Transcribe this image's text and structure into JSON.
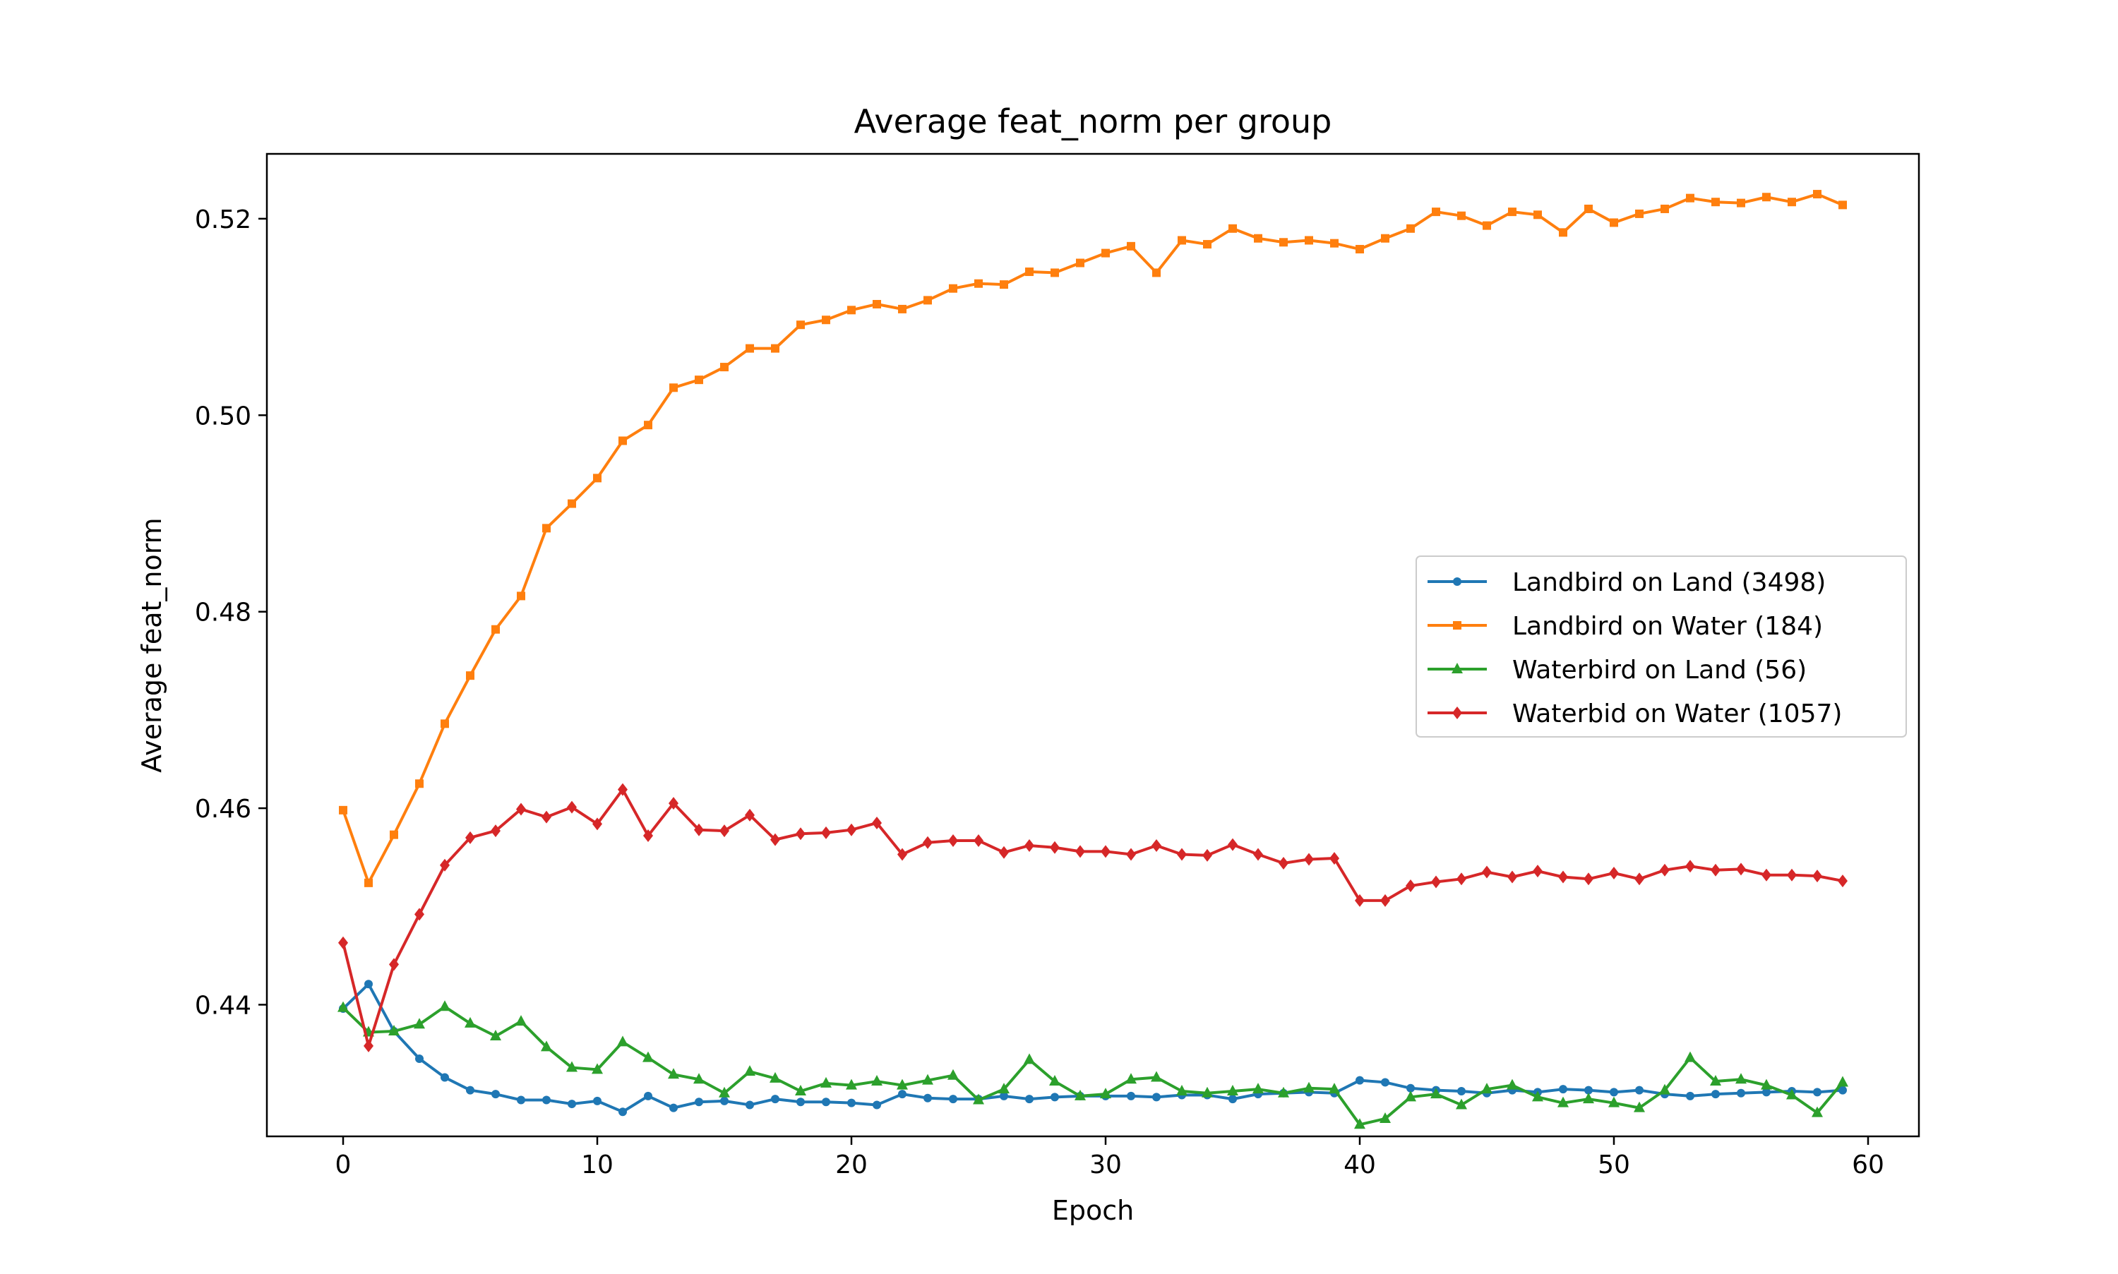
{
  "chart_data": {
    "type": "line",
    "title": "Average feat_norm per group",
    "xlabel": "Epoch",
    "ylabel": "Average feat_norm",
    "xlim": [
      -3,
      62
    ],
    "ylim": [
      0.4266,
      0.5266
    ],
    "xticks": [
      0,
      10,
      20,
      30,
      40,
      50,
      60
    ],
    "xtick_labels": [
      "0",
      "10",
      "20",
      "30",
      "40",
      "50",
      "60"
    ],
    "yticks": [
      0.44,
      0.46,
      0.48,
      0.5,
      0.52
    ],
    "ytick_labels": [
      "0.44",
      "0.46",
      "0.48",
      "0.50",
      "0.52"
    ],
    "grid": false,
    "legend_position": "center-right",
    "series": [
      {
        "name": "Landbird on Land (3498)",
        "color": "#1f77b4",
        "marker": "circle",
        "values": [
          0.4396,
          0.4421,
          0.4373,
          0.4345,
          0.4326,
          0.4313,
          0.4309,
          0.4303,
          0.4303,
          0.4299,
          0.4302,
          0.4291,
          0.4307,
          0.4295,
          0.4301,
          0.4302,
          0.4298,
          0.4304,
          0.4301,
          0.4301,
          0.43,
          0.4298,
          0.4309,
          0.4305,
          0.4304,
          0.4304,
          0.4307,
          0.4304,
          0.4306,
          0.4307,
          0.4307,
          0.4307,
          0.4306,
          0.4308,
          0.4308,
          0.4304,
          0.4309,
          0.431,
          0.4311,
          0.431,
          0.4323,
          0.4321,
          0.4315,
          0.4313,
          0.4312,
          0.431,
          0.4313,
          0.4311,
          0.4314,
          0.4313,
          0.4311,
          0.4313,
          0.4309,
          0.4307,
          0.4309,
          0.431,
          0.4311,
          0.4312,
          0.4311,
          0.4313
        ]
      },
      {
        "name": "Landbird on Water (184)",
        "color": "#ff7f0e",
        "marker": "square",
        "values": [
          0.4598,
          0.4524,
          0.4573,
          0.4625,
          0.4686,
          0.4735,
          0.4782,
          0.4816,
          0.4885,
          0.491,
          0.4936,
          0.4974,
          0.499,
          0.5028,
          0.5036,
          0.5049,
          0.5068,
          0.5068,
          0.5092,
          0.5097,
          0.5107,
          0.5113,
          0.5108,
          0.5117,
          0.5129,
          0.5134,
          0.5133,
          0.5146,
          0.5145,
          0.5155,
          0.5165,
          0.5172,
          0.5145,
          0.5178,
          0.5174,
          0.519,
          0.518,
          0.5176,
          0.5178,
          0.5175,
          0.5169,
          0.518,
          0.519,
          0.5207,
          0.5203,
          0.5193,
          0.5207,
          0.5204,
          0.5186,
          0.521,
          0.5196,
          0.5205,
          0.521,
          0.5221,
          0.5217,
          0.5216,
          0.5222,
          0.5217,
          0.5225,
          0.5214
        ]
      },
      {
        "name": "Waterbird on Land (56)",
        "color": "#2ca02c",
        "marker": "triangle",
        "values": [
          0.4397,
          0.4372,
          0.4373,
          0.438,
          0.4398,
          0.4381,
          0.4368,
          0.4383,
          0.4357,
          0.4336,
          0.4334,
          0.4362,
          0.4346,
          0.4329,
          0.4324,
          0.431,
          0.4332,
          0.4325,
          0.4312,
          0.432,
          0.4318,
          0.4322,
          0.4318,
          0.4323,
          0.4328,
          0.4303,
          0.4314,
          0.4344,
          0.4322,
          0.4307,
          0.4309,
          0.4324,
          0.4326,
          0.4312,
          0.431,
          0.4312,
          0.4314,
          0.431,
          0.4315,
          0.4314,
          0.4278,
          0.4284,
          0.4306,
          0.4309,
          0.4298,
          0.4314,
          0.4318,
          0.4306,
          0.43,
          0.4304,
          0.43,
          0.4295,
          0.4313,
          0.4346,
          0.4322,
          0.4324,
          0.4318,
          0.4308,
          0.429,
          0.4321
        ]
      },
      {
        "name": "Waterbid on Water (1057)",
        "color": "#d62728",
        "marker": "diamond",
        "values": [
          0.4463,
          0.4358,
          0.4441,
          0.4492,
          0.4542,
          0.457,
          0.4577,
          0.4599,
          0.4591,
          0.4601,
          0.4584,
          0.4619,
          0.4572,
          0.4605,
          0.4578,
          0.4577,
          0.4593,
          0.4568,
          0.4574,
          0.4575,
          0.4578,
          0.4585,
          0.4553,
          0.4565,
          0.4567,
          0.4567,
          0.4555,
          0.4562,
          0.456,
          0.4556,
          0.4556,
          0.4553,
          0.4562,
          0.4553,
          0.4552,
          0.4563,
          0.4553,
          0.4544,
          0.4548,
          0.4549,
          0.4506,
          0.4506,
          0.4521,
          0.4525,
          0.4528,
          0.4535,
          0.453,
          0.4536,
          0.453,
          0.4528,
          0.4534,
          0.4528,
          0.4537,
          0.4541,
          0.4537,
          0.4538,
          0.4532,
          0.4532,
          0.4531,
          0.4526
        ]
      }
    ]
  }
}
